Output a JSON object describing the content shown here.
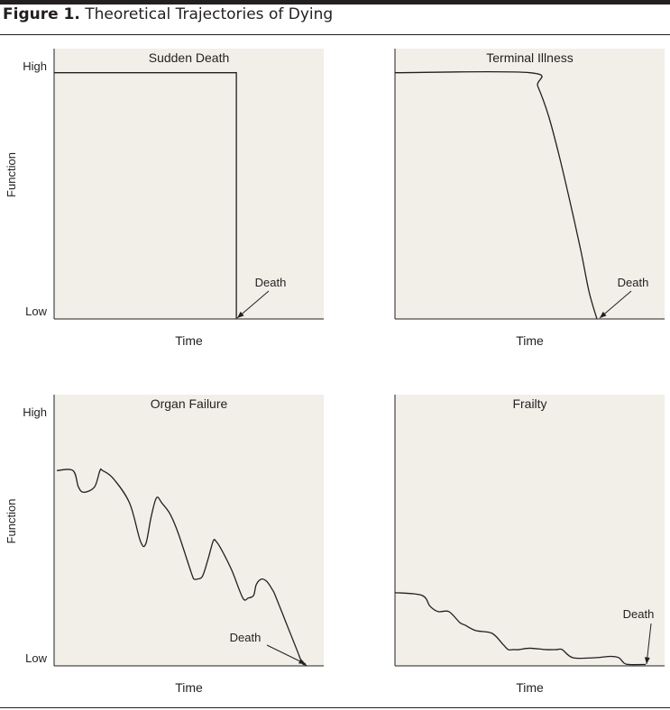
{
  "figure": {
    "label": "Figure 1.",
    "title": "Theoretical Trajectories of Dying"
  },
  "colors": {
    "panel_background": "#f1efe8",
    "line": "#231f20"
  },
  "chart_data": [
    {
      "type": "line",
      "title": "Sudden Death",
      "xlabel": "Time",
      "ylabel": "Function",
      "y_ticks": [
        "Low",
        "High"
      ],
      "ylim": [
        0,
        1
      ],
      "xlim": [
        0,
        1
      ],
      "annotation": "Death",
      "series": [
        {
          "x": [
            0,
            0.676,
            0.676
          ],
          "y": [
            0.911,
            0.911,
            0
          ]
        }
      ]
    },
    {
      "type": "line",
      "title": "Terminal Illness",
      "xlabel": "Time",
      "ylabel": "",
      "y_ticks": [],
      "ylim": [
        0,
        1
      ],
      "xlim": [
        0,
        1
      ],
      "annotation": "Death",
      "series": [
        {
          "x": [
            0,
            0.5,
            0.53,
            0.57,
            0.61,
            0.65,
            0.69,
            0.72,
            0.749
          ],
          "y": [
            0.911,
            0.911,
            0.86,
            0.75,
            0.6,
            0.43,
            0.25,
            0.1,
            0
          ]
        }
      ]
    },
    {
      "type": "line",
      "title": "Organ Failure",
      "xlabel": "Time",
      "ylabel": "Function",
      "y_ticks": [
        "Low",
        "High"
      ],
      "ylim": [
        0,
        1
      ],
      "xlim": [
        0,
        1
      ],
      "annotation": "Death",
      "series": [
        {
          "x": [
            0.01,
            0.07,
            0.09,
            0.11,
            0.15,
            0.17,
            0.18,
            0.22,
            0.28,
            0.32,
            0.34,
            0.36,
            0.38,
            0.4,
            0.43,
            0.46,
            0.51,
            0.52,
            0.53,
            0.55,
            0.57,
            0.59,
            0.6,
            0.62,
            0.66,
            0.7,
            0.72,
            0.74,
            0.75,
            0.77,
            0.79,
            0.81,
            0.82,
            0.86,
            0.9,
            0.92,
            0.93,
            0.937
          ],
          "y": [
            0.72,
            0.72,
            0.66,
            0.64,
            0.66,
            0.72,
            0.72,
            0.69,
            0.6,
            0.46,
            0.45,
            0.55,
            0.62,
            0.6,
            0.56,
            0.49,
            0.34,
            0.32,
            0.32,
            0.33,
            0.39,
            0.46,
            0.46,
            0.43,
            0.35,
            0.25,
            0.25,
            0.26,
            0.3,
            0.32,
            0.31,
            0.28,
            0.26,
            0.16,
            0.06,
            0.01,
            0.005,
            0
          ]
        }
      ]
    },
    {
      "type": "line",
      "title": "Frailty",
      "xlabel": "Time",
      "ylabel": "",
      "y_ticks": [],
      "ylim": [
        0,
        1
      ],
      "xlim": [
        0,
        1
      ],
      "annotation": "Death",
      "series": [
        {
          "x": [
            0,
            0.1,
            0.13,
            0.16,
            0.2,
            0.24,
            0.26,
            0.3,
            0.36,
            0.4,
            0.42,
            0.44,
            0.46,
            0.5,
            0.56,
            0.6,
            0.62,
            0.66,
            0.74,
            0.8,
            0.83,
            0.85,
            0.87,
            0.93
          ],
          "y": [
            0.27,
            0.26,
            0.22,
            0.2,
            0.2,
            0.16,
            0.15,
            0.13,
            0.12,
            0.08,
            0.06,
            0.06,
            0.06,
            0.065,
            0.06,
            0.06,
            0.06,
            0.03,
            0.03,
            0.035,
            0.03,
            0.01,
            0.005,
            0.005
          ]
        }
      ]
    }
  ]
}
